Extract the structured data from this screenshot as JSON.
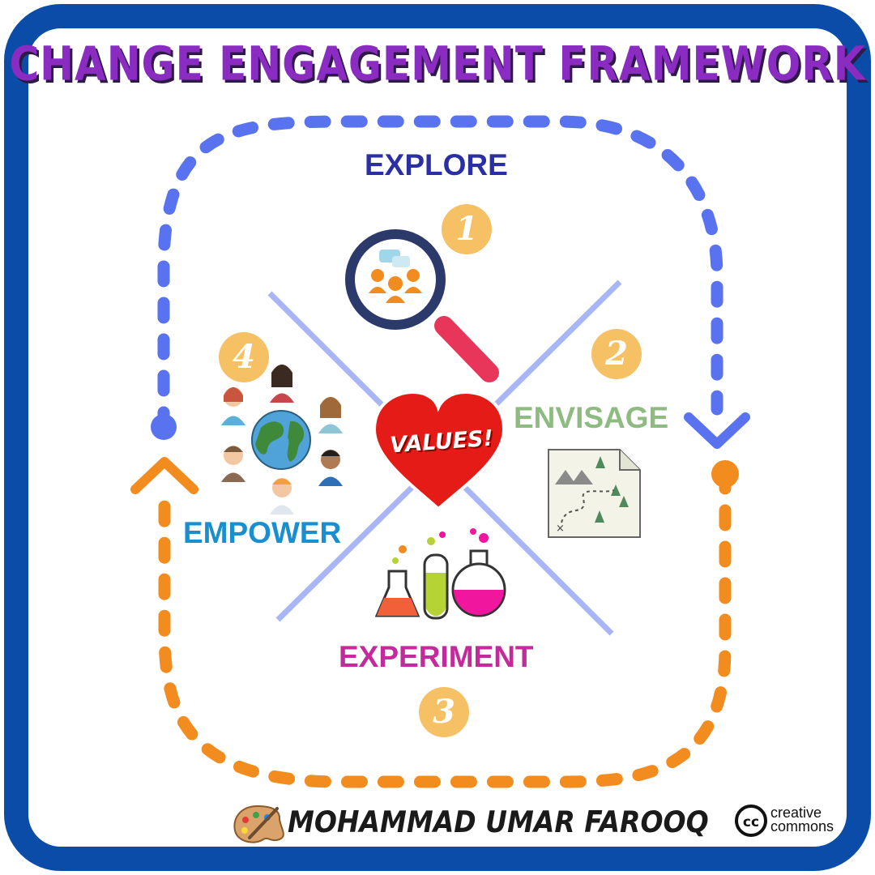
{
  "title": "CHANGE ENGAGEMENT FRAMEWORK",
  "phases": [
    {
      "name": "EXPLORE",
      "number": "1",
      "icon": "magnifier-people-icon",
      "color": "#2a2fa5"
    },
    {
      "name": "ENVISAGE",
      "number": "2",
      "icon": "treasure-map-icon",
      "color": "#8fbb82"
    },
    {
      "name": "EXPERIMENT",
      "number": "3",
      "icon": "lab-flasks-icon",
      "color": "#c32a9b"
    },
    {
      "name": "EMPOWER",
      "number": "4",
      "icon": "globe-people-icon",
      "color": "#1a8fcf"
    }
  ],
  "center": {
    "label": "VALUES!",
    "icon": "heart-icon"
  },
  "author": "MOHAMMAD UMAR FAROOQ",
  "license": {
    "line1": "creative",
    "line2": "commons",
    "icon": "cc-icon"
  },
  "colors": {
    "frame": "#0a4ca8",
    "loop_blue": "#5872f0",
    "loop_orange": "#f28c1e",
    "cross": "#a9b6f5",
    "accent_number": "#f6c064"
  }
}
